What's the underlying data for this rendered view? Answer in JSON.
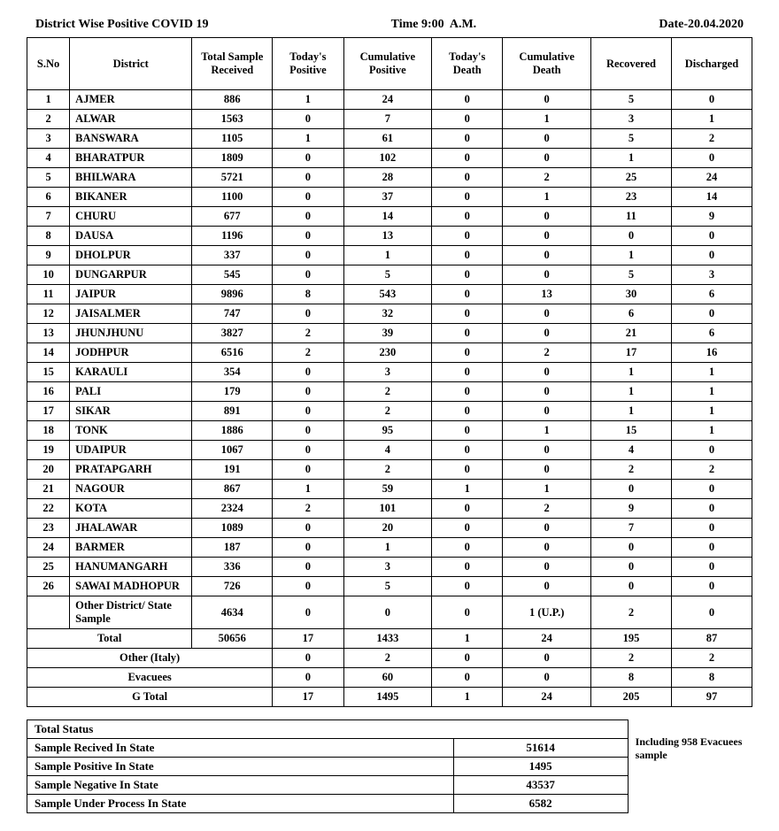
{
  "header": {
    "title": "District Wise Positive COVID 19",
    "time_label": "Time 9:00  A.M.",
    "date_label": "Date-20.04.2020"
  },
  "columns": [
    "S.No",
    "District",
    "Total Sample Received",
    "Today's Positive",
    "Cumulative Positive",
    "Today's Death",
    "Cumulative Death",
    "Recovered",
    "Discharged"
  ],
  "rows": [
    {
      "sno": "1",
      "district": "AJMER",
      "samples": "886",
      "todays_pos": "1",
      "cum_pos": "24",
      "todays_death": "0",
      "cum_death": "0",
      "recovered": "5",
      "discharged": "0"
    },
    {
      "sno": "2",
      "district": "ALWAR",
      "samples": "1563",
      "todays_pos": "0",
      "cum_pos": "7",
      "todays_death": "0",
      "cum_death": "1",
      "recovered": "3",
      "discharged": "1"
    },
    {
      "sno": "3",
      "district": "BANSWARA",
      "samples": "1105",
      "todays_pos": "1",
      "cum_pos": "61",
      "todays_death": "0",
      "cum_death": "0",
      "recovered": "5",
      "discharged": "2"
    },
    {
      "sno": "4",
      "district": "BHARATPUR",
      "samples": "1809",
      "todays_pos": "0",
      "cum_pos": "102",
      "todays_death": "0",
      "cum_death": "0",
      "recovered": "1",
      "discharged": "0"
    },
    {
      "sno": "5",
      "district": "BHILWARA",
      "samples": "5721",
      "todays_pos": "0",
      "cum_pos": "28",
      "todays_death": "0",
      "cum_death": "2",
      "recovered": "25",
      "discharged": "24"
    },
    {
      "sno": "6",
      "district": "BIKANER",
      "samples": "1100",
      "todays_pos": "0",
      "cum_pos": "37",
      "todays_death": "0",
      "cum_death": "1",
      "recovered": "23",
      "discharged": "14"
    },
    {
      "sno": "7",
      "district": "CHURU",
      "samples": "677",
      "todays_pos": "0",
      "cum_pos": "14",
      "todays_death": "0",
      "cum_death": "0",
      "recovered": "11",
      "discharged": "9"
    },
    {
      "sno": "8",
      "district": "DAUSA",
      "samples": "1196",
      "todays_pos": "0",
      "cum_pos": "13",
      "todays_death": "0",
      "cum_death": "0",
      "recovered": "0",
      "discharged": "0"
    },
    {
      "sno": "9",
      "district": "DHOLPUR",
      "samples": "337",
      "todays_pos": "0",
      "cum_pos": "1",
      "todays_death": "0",
      "cum_death": "0",
      "recovered": "1",
      "discharged": "0"
    },
    {
      "sno": "10",
      "district": "DUNGARPUR",
      "samples": "545",
      "todays_pos": "0",
      "cum_pos": "5",
      "todays_death": "0",
      "cum_death": "0",
      "recovered": "5",
      "discharged": "3"
    },
    {
      "sno": "11",
      "district": "JAIPUR",
      "samples": "9896",
      "todays_pos": "8",
      "cum_pos": "543",
      "todays_death": "0",
      "cum_death": "13",
      "recovered": "30",
      "discharged": "6"
    },
    {
      "sno": "12",
      "district": "JAISALMER",
      "samples": "747",
      "todays_pos": "0",
      "cum_pos": "32",
      "todays_death": "0",
      "cum_death": "0",
      "recovered": "6",
      "discharged": "0"
    },
    {
      "sno": "13",
      "district": "JHUNJHUNU",
      "samples": "3827",
      "todays_pos": "2",
      "cum_pos": "39",
      "todays_death": "0",
      "cum_death": "0",
      "recovered": "21",
      "discharged": "6"
    },
    {
      "sno": "14",
      "district": "JODHPUR",
      "samples": "6516",
      "todays_pos": "2",
      "cum_pos": "230",
      "todays_death": "0",
      "cum_death": "2",
      "recovered": "17",
      "discharged": "16"
    },
    {
      "sno": "15",
      "district": "KARAULI",
      "samples": "354",
      "todays_pos": "0",
      "cum_pos": "3",
      "todays_death": "0",
      "cum_death": "0",
      "recovered": "1",
      "discharged": "1"
    },
    {
      "sno": "16",
      "district": "PALI",
      "samples": "179",
      "todays_pos": "0",
      "cum_pos": "2",
      "todays_death": "0",
      "cum_death": "0",
      "recovered": "1",
      "discharged": "1"
    },
    {
      "sno": "17",
      "district": "SIKAR",
      "samples": "891",
      "todays_pos": "0",
      "cum_pos": "2",
      "todays_death": "0",
      "cum_death": "0",
      "recovered": "1",
      "discharged": "1"
    },
    {
      "sno": "18",
      "district": "TONK",
      "samples": "1886",
      "todays_pos": "0",
      "cum_pos": "95",
      "todays_death": "0",
      "cum_death": "1",
      "recovered": "15",
      "discharged": "1"
    },
    {
      "sno": "19",
      "district": "UDAIPUR",
      "samples": "1067",
      "todays_pos": "0",
      "cum_pos": "4",
      "todays_death": "0",
      "cum_death": "0",
      "recovered": "4",
      "discharged": "0"
    },
    {
      "sno": "20",
      "district": "PRATAPGARH",
      "samples": "191",
      "todays_pos": "0",
      "cum_pos": "2",
      "todays_death": "0",
      "cum_death": "0",
      "recovered": "2",
      "discharged": "2"
    },
    {
      "sno": "21",
      "district": "NAGOUR",
      "samples": "867",
      "todays_pos": "1",
      "cum_pos": "59",
      "todays_death": "1",
      "cum_death": "1",
      "recovered": "0",
      "discharged": "0"
    },
    {
      "sno": "22",
      "district": "KOTA",
      "samples": "2324",
      "todays_pos": "2",
      "cum_pos": "101",
      "todays_death": "0",
      "cum_death": "2",
      "recovered": "9",
      "discharged": "0"
    },
    {
      "sno": "23",
      "district": "JHALAWAR",
      "samples": "1089",
      "todays_pos": "0",
      "cum_pos": "20",
      "todays_death": "0",
      "cum_death": "0",
      "recovered": "7",
      "discharged": "0"
    },
    {
      "sno": "24",
      "district": "BARMER",
      "samples": "187",
      "todays_pos": "0",
      "cum_pos": "1",
      "todays_death": "0",
      "cum_death": "0",
      "recovered": "0",
      "discharged": "0"
    },
    {
      "sno": "25",
      "district": "HANUMANGARH",
      "samples": "336",
      "todays_pos": "0",
      "cum_pos": "3",
      "todays_death": "0",
      "cum_death": "0",
      "recovered": "0",
      "discharged": "0"
    },
    {
      "sno": "26",
      "district": "SAWAI MADHOPUR",
      "samples": "726",
      "todays_pos": "0",
      "cum_pos": "5",
      "todays_death": "0",
      "cum_death": "0",
      "recovered": "0",
      "discharged": "0"
    }
  ],
  "other_district": {
    "label": "Other District/ State Sample",
    "samples": "4634",
    "todays_pos": "0",
    "cum_pos": "0",
    "todays_death": "0",
    "cum_death": "1 (U.P.)",
    "recovered": "2",
    "discharged": "0"
  },
  "total": {
    "label": "Total",
    "samples": "50656",
    "todays_pos": "17",
    "cum_pos": "1433",
    "todays_death": "1",
    "cum_death": "24",
    "recovered": "195",
    "discharged": "87"
  },
  "other_italy": {
    "label": "Other (Italy)",
    "todays_pos": "0",
    "cum_pos": "2",
    "todays_death": "0",
    "cum_death": "0",
    "recovered": "2",
    "discharged": "2"
  },
  "evacuees": {
    "label": "Evacuees",
    "todays_pos": "0",
    "cum_pos": "60",
    "todays_death": "0",
    "cum_death": "0",
    "recovered": "8",
    "discharged": "8"
  },
  "g_total": {
    "label": "G Total",
    "todays_pos": "17",
    "cum_pos": "1495",
    "todays_death": "1",
    "cum_death": "24",
    "recovered": "205",
    "discharged": "97"
  },
  "status": {
    "title": "Total Status",
    "rows": [
      {
        "label": "Sample Recived In State",
        "value": "51614"
      },
      {
        "label": "Sample Positive In State",
        "value": "1495"
      },
      {
        "label": "Sample Negative In State",
        "value": "43537"
      },
      {
        "label": "Sample Under Process In State",
        "value": "6582"
      }
    ],
    "note": "Including 958 Evacuees sample"
  },
  "col_widths": [
    "36px",
    "120px",
    "76px",
    "66px",
    "84px",
    "66px",
    "84px",
    "76px",
    "76px"
  ]
}
